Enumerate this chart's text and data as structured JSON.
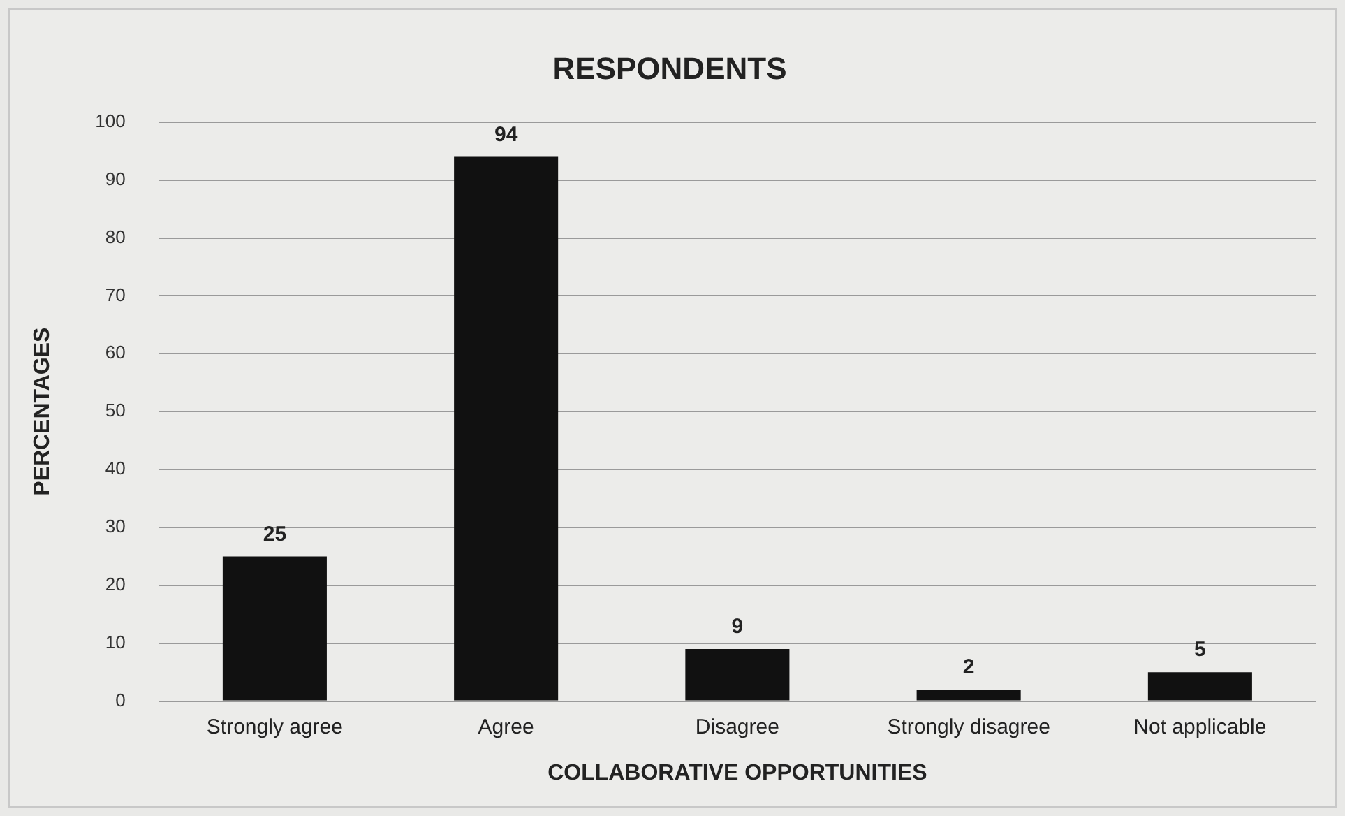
{
  "chart_data": {
    "type": "bar",
    "title": "RESPONDENTS",
    "xlabel": "COLLABORATIVE OPPORTUNITIES",
    "ylabel": "PERCENTAGES",
    "categories": [
      "Strongly agree",
      "Agree",
      "Disagree",
      "Strongly disagree",
      "Not applicable"
    ],
    "values": [
      25,
      94,
      9,
      2,
      5
    ],
    "color": "#111111",
    "ylim": [
      0,
      100
    ],
    "yticks": [
      0,
      10,
      20,
      30,
      40,
      50,
      60,
      70,
      80,
      90,
      100
    ],
    "grid": "y",
    "data_labels": true
  }
}
